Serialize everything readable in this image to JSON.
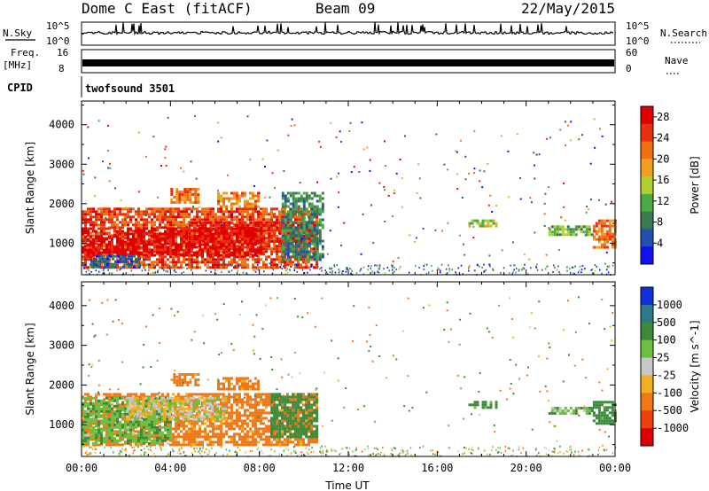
{
  "header": {
    "radar": "Dome C East (fitACF)",
    "beam": "Beam 09",
    "date": "22/May/2015"
  },
  "strip_labels": {
    "nsky": "N.Sky",
    "freq_top": "Freq.",
    "freq_unit": "[MHz]",
    "cpid": "CPID",
    "nsearch": "N.Search",
    "nave": "Nave",
    "noise_left_top": "10^5",
    "noise_left_bottom": "10^0",
    "noise_right_top": "10^5",
    "noise_right_bottom": "10^0",
    "freq_left_top": "16",
    "freq_left_bottom": "8",
    "nave_right_top": "60",
    "nave_right_bottom": "0",
    "cpid_text": "twofsound 3501"
  },
  "colors": {
    "background": "#ffffff",
    "axes": "#000000",
    "power_scale": [
      "#1010f0",
      "#2050b0",
      "#3a7a50",
      "#4caa44",
      "#b0d030",
      "#f0a020",
      "#f07010",
      "#e83010",
      "#e00000"
    ],
    "velocity_scale": [
      "#1030e0",
      "#2a7a8c",
      "#3c8a3c",
      "#6cc040",
      "#c8c8c8",
      "#f0b020",
      "#f07818",
      "#f04010",
      "#e00000"
    ]
  },
  "chart_data": [
    {
      "type": "heatmap",
      "name": "power",
      "xlabel": "Time UT",
      "ylabel": "Slant Range [km]",
      "x_ticks": [
        "00:00",
        "04:00",
        "08:00",
        "12:00",
        "16:00",
        "20:00",
        "00:00"
      ],
      "x_range_hours": [
        0,
        24
      ],
      "y_ticks": [
        1000,
        2000,
        3000,
        4000
      ],
      "ylim": [
        200,
        4600
      ],
      "colorbar": {
        "label": "Power [dB]",
        "ticks": [
          4,
          8,
          12,
          16,
          20,
          24,
          28
        ],
        "range": [
          0,
          30
        ]
      },
      "regions": [
        {
          "t0": 0.0,
          "t1": 10.6,
          "r0": 400,
          "r1": 1900,
          "value": 24
        },
        {
          "t0": 0.0,
          "t1": 8.2,
          "r0": 700,
          "r1": 1400,
          "value": 29
        },
        {
          "t0": 4.8,
          "t1": 10.6,
          "r0": 1050,
          "r1": 1550,
          "value": 27
        },
        {
          "t0": 0.4,
          "t1": 2.6,
          "r0": 400,
          "r1": 700,
          "value": 6
        },
        {
          "t0": 9.0,
          "t1": 10.9,
          "r0": 600,
          "r1": 2300,
          "value": 9
        },
        {
          "t0": 4.0,
          "t1": 5.3,
          "r0": 2000,
          "r1": 2400,
          "value": 22
        },
        {
          "t0": 6.1,
          "t1": 7.9,
          "r0": 1900,
          "r1": 2300,
          "value": 20
        },
        {
          "t0": 17.4,
          "t1": 18.6,
          "r0": 1400,
          "r1": 1600,
          "value": 14
        },
        {
          "t0": 21.0,
          "t1": 23.0,
          "r0": 1200,
          "r1": 1450,
          "value": 12
        },
        {
          "t0": 23.0,
          "t1": 24.0,
          "r0": 900,
          "r1": 1600,
          "value": 22
        }
      ]
    },
    {
      "type": "heatmap",
      "name": "velocity",
      "xlabel": "Time UT",
      "ylabel": "Slant Range [km]",
      "x_ticks": [
        "00:00",
        "04:00",
        "08:00",
        "12:00",
        "16:00",
        "20:00",
        "00:00"
      ],
      "x_range_hours": [
        0,
        24
      ],
      "y_ticks": [
        1000,
        2000,
        3000,
        4000
      ],
      "ylim": [
        200,
        4600
      ],
      "colorbar": {
        "label": "Velocity [m s^-1]",
        "ticks": [
          "1000",
          "500",
          "100",
          "25",
          "-25",
          "-100",
          "-500",
          "-1000"
        ]
      },
      "regions": [
        {
          "t0": 0.0,
          "t1": 10.6,
          "r0": 500,
          "r1": 1800,
          "value": -150
        },
        {
          "t0": 0.0,
          "t1": 4.0,
          "r0": 500,
          "r1": 1700,
          "value": 80
        },
        {
          "t0": 2.0,
          "t1": 6.5,
          "r0": 1150,
          "r1": 1700,
          "value": 0
        },
        {
          "t0": 8.5,
          "t1": 10.6,
          "r0": 700,
          "r1": 1800,
          "value": 200
        },
        {
          "t0": 4.0,
          "t1": 5.3,
          "r0": 2000,
          "r1": 2300,
          "value": -150
        },
        {
          "t0": 6.1,
          "t1": 7.9,
          "r0": 1900,
          "r1": 2200,
          "value": -150
        },
        {
          "t0": 17.4,
          "t1": 18.6,
          "r0": 1400,
          "r1": 1600,
          "value": 150
        },
        {
          "t0": 21.0,
          "t1": 23.0,
          "r0": 1250,
          "r1": 1450,
          "value": 60
        },
        {
          "t0": 23.0,
          "t1": 24.0,
          "r0": 1000,
          "r1": 1600,
          "value": 150
        }
      ]
    }
  ]
}
